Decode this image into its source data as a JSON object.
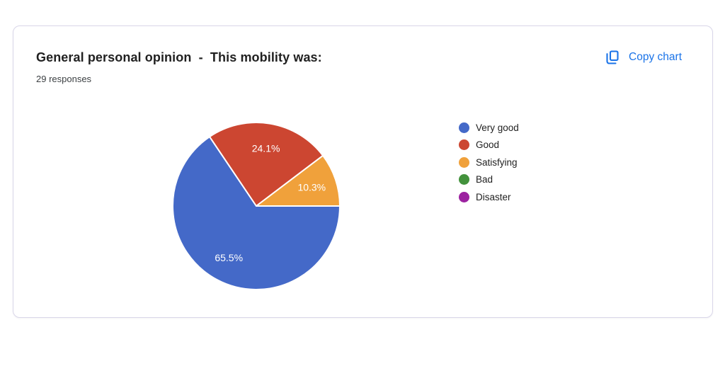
{
  "page": {
    "background": "#ffffff"
  },
  "card": {
    "title": "General personal opinion  -  This mobility was:",
    "responses": "29 responses",
    "copy_button": {
      "label": "Copy chart",
      "icon": "copy-icon",
      "color": "#1a73e8"
    }
  },
  "chart_data": {
    "type": "pie",
    "title": "General personal opinion - This mobility was:",
    "subtitle": "29 responses",
    "legend_position": "right",
    "labels": [
      "Very good",
      "Good",
      "Satisfying",
      "Bad",
      "Disaster"
    ],
    "values": [
      65.5,
      24.1,
      10.3,
      0,
      0
    ],
    "display_labels": [
      "65.5%",
      "24.1%",
      "10.3%",
      "",
      ""
    ],
    "colors": [
      "#4469c8",
      "#cc4631",
      "#f0a13b",
      "#43923c",
      "#9c22a0"
    ],
    "slice_label_color": "#ffffff",
    "slice_border_color": "#ffffff",
    "start_angle_deg": 0,
    "direction": "clockwise"
  }
}
